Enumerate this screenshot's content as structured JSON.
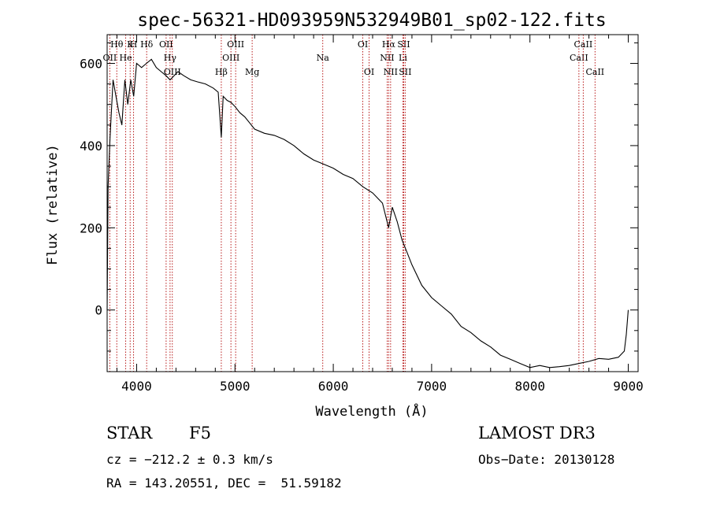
{
  "chart_data": {
    "type": "line",
    "title": "spec-56321-HD093959N532949B01_sp02-122.fits",
    "xlabel": "Wavelength (Å)",
    "ylabel": "Flux (relative)",
    "xlim": [
      3700,
      9100
    ],
    "ylim": [
      -150,
      670
    ],
    "xticks": [
      4000,
      5000,
      6000,
      7000,
      8000,
      9000
    ],
    "yticks": [
      0,
      200,
      400,
      600
    ],
    "grid": false,
    "series": [
      {
        "name": "spectrum",
        "x": [
          3700,
          3710,
          3730,
          3760,
          3790,
          3820,
          3850,
          3880,
          3910,
          3940,
          3970,
          4000,
          4050,
          4100,
          4150,
          4200,
          4250,
          4300,
          4340,
          4380,
          4420,
          4480,
          4550,
          4620,
          4700,
          4780,
          4830,
          4861,
          4880,
          4920,
          4960,
          5000,
          5050,
          5100,
          5150,
          5200,
          5300,
          5400,
          5500,
          5600,
          5700,
          5800,
          5900,
          6000,
          6100,
          6200,
          6300,
          6400,
          6500,
          6563,
          6600,
          6650,
          6700,
          6750,
          6800,
          6900,
          7000,
          7100,
          7200,
          7300,
          7400,
          7500,
          7600,
          7700,
          7800,
          7900,
          8000,
          8100,
          8200,
          8300,
          8400,
          8500,
          8600,
          8700,
          8800,
          8900,
          8960,
          8980,
          9000
        ],
        "y": [
          0,
          300,
          420,
          560,
          520,
          480,
          450,
          560,
          500,
          560,
          520,
          600,
          590,
          600,
          610,
          590,
          580,
          570,
          560,
          570,
          580,
          570,
          560,
          555,
          550,
          540,
          530,
          420,
          520,
          510,
          505,
          495,
          480,
          470,
          455,
          440,
          430,
          425,
          415,
          400,
          380,
          365,
          355,
          345,
          330,
          320,
          300,
          285,
          260,
          200,
          250,
          215,
          170,
          140,
          110,
          60,
          30,
          10,
          -10,
          -40,
          -55,
          -75,
          -90,
          -110,
          -120,
          -130,
          -140,
          -135,
          -140,
          -138,
          -135,
          -130,
          -125,
          -118,
          -120,
          -115,
          -100,
          -60,
          0
        ]
      }
    ],
    "lines": [
      {
        "name": "Hθ",
        "x": 3798,
        "label_row": 0
      },
      {
        "name": "K",
        "x": 3934,
        "label_row": 0
      },
      {
        "name": "H",
        "x": 3969,
        "label_row": 0
      },
      {
        "name": "Hδ",
        "x": 4102,
        "label_row": 0
      },
      {
        "name": "OII",
        "x": 3727,
        "label_row": 1
      },
      {
        "name": "He",
        "x": 3889,
        "label_row": 1
      },
      {
        "name": "OII",
        "x": 4300,
        "label_row": 0
      },
      {
        "name": "Hγ",
        "x": 4340,
        "label_row": 1
      },
      {
        "name": "OIII",
        "x": 4363,
        "label_row": 2
      },
      {
        "name": "Hβ",
        "x": 4861,
        "label_row": 2
      },
      {
        "name": "OIII",
        "x": 4959,
        "label_row": 1
      },
      {
        "name": "OIII",
        "x": 5007,
        "label_row": 0
      },
      {
        "name": "Mg",
        "x": 5175,
        "label_row": 2
      },
      {
        "name": "Na",
        "x": 5893,
        "label_row": 1
      },
      {
        "name": "OI",
        "x": 6300,
        "label_row": 0
      },
      {
        "name": "OI",
        "x": 6364,
        "label_row": 2
      },
      {
        "name": "NII",
        "x": 6548,
        "label_row": 1
      },
      {
        "name": "Hα",
        "x": 6563,
        "label_row": 0
      },
      {
        "name": "NII",
        "x": 6583,
        "label_row": 2
      },
      {
        "name": "SII",
        "x": 6716,
        "label_row": 0
      },
      {
        "name": "Li",
        "x": 6708,
        "label_row": 1
      },
      {
        "name": "SII",
        "x": 6731,
        "label_row": 2
      },
      {
        "name": "CaII",
        "x": 8498,
        "label_row": 1
      },
      {
        "name": "CaII",
        "x": 8542,
        "label_row": 0
      },
      {
        "name": "CaII",
        "x": 8662,
        "label_row": 2
      }
    ]
  },
  "info": {
    "class_label": "STAR",
    "subclass": "F5",
    "survey": "LAMOST DR3",
    "cz": "cz = −212.2 ± 0.3 km/s",
    "obs_date": "Obs−Date: 20130128",
    "radec": "RA = 143.20551, DEC =  51.59182"
  },
  "colors": {
    "line_marker": "#b00000",
    "spectrum": "#000000"
  }
}
